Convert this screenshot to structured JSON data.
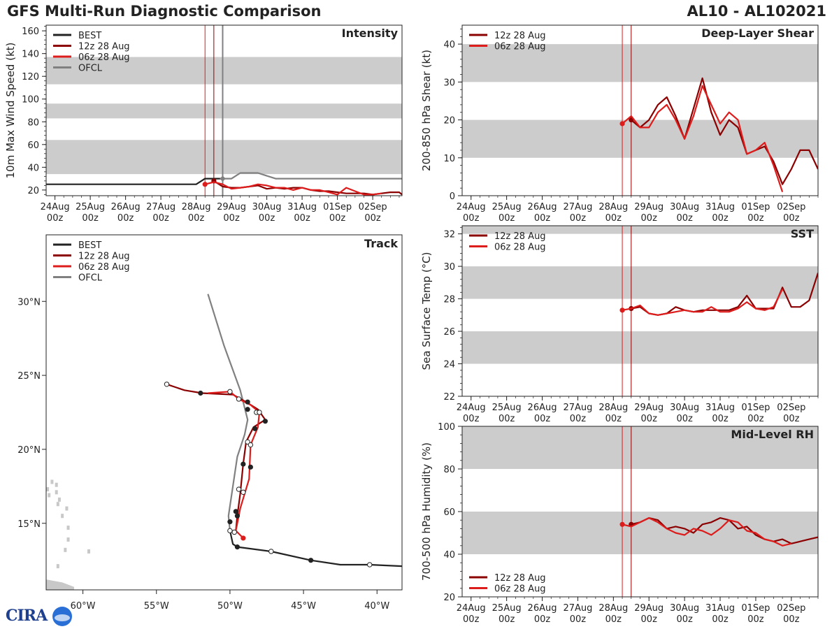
{
  "header": {
    "title": "GFS Multi-Run Diagnostic Comparison",
    "storm": "AL10 - AL102021"
  },
  "logo": {
    "text": "CIRA"
  },
  "colors": {
    "best": "#222222",
    "run12z": "#8b0000",
    "run06z": "#dd1c1c",
    "ofcl": "#808080",
    "shade": "#cccccc",
    "land": "#c8c8c8"
  },
  "time_axis": {
    "ticks": [
      {
        "day": 0,
        "top": "24Aug",
        "bottom": "00z"
      },
      {
        "day": 1,
        "top": "25Aug",
        "bottom": "00z"
      },
      {
        "day": 2,
        "top": "26Aug",
        "bottom": "00z"
      },
      {
        "day": 3,
        "top": "27Aug",
        "bottom": "00z"
      },
      {
        "day": 4,
        "top": "28Aug",
        "bottom": "00z"
      },
      {
        "day": 5,
        "top": "29Aug",
        "bottom": "00z"
      },
      {
        "day": 6,
        "top": "30Aug",
        "bottom": "00z"
      },
      {
        "day": 7,
        "top": "31Aug",
        "bottom": "00z"
      },
      {
        "day": 8,
        "top": "01Sep",
        "bottom": "00z"
      },
      {
        "day": 9,
        "top": "02Sep",
        "bottom": "00z"
      }
    ],
    "init_06z": 4.25,
    "init_12z": 4.5
  },
  "chart_data": [
    {
      "id": "intensity",
      "type": "line",
      "title": "Intensity",
      "ylabel": "10m Max Wind Speed (kt)",
      "ylim": [
        15,
        165
      ],
      "xlim": [
        -0.25,
        9.83
      ],
      "yticks": [
        20,
        40,
        60,
        80,
        100,
        120,
        140,
        160
      ],
      "shade_bands": [
        [
          34,
          64
        ],
        [
          83,
          96
        ],
        [
          113,
          137
        ]
      ],
      "init_lines": [
        4.25,
        4.5
      ],
      "ofcl_init": 4.75,
      "legend": [
        "BEST",
        "12z 28 Aug",
        "06z 28 Aug",
        "OFCL"
      ],
      "series": [
        {
          "name": "BEST",
          "color": "#222222",
          "x": [
            -0.25,
            4.0,
            4.25,
            4.5,
            4.75
          ],
          "y": [
            25,
            25,
            30,
            30,
            30
          ]
        },
        {
          "name": "OFCL",
          "color": "#808080",
          "x": [
            4.75,
            5.0,
            5.25,
            5.75,
            6.25,
            7.0,
            8.0,
            9.0,
            9.83
          ],
          "y": [
            30,
            30,
            35,
            35,
            30,
            30,
            30,
            30,
            30
          ]
        },
        {
          "name": "12z 28 Aug",
          "color": "#8b0000",
          "x": [
            4.5,
            4.75,
            5.0,
            5.25,
            5.5,
            5.75,
            6.0,
            6.25,
            6.5,
            6.75,
            7.0,
            7.25,
            7.5,
            7.75,
            8.0,
            8.25,
            8.5,
            8.75,
            9.0,
            9.25,
            9.5,
            9.75,
            9.83
          ],
          "y": [
            28,
            23,
            22,
            22,
            23,
            24,
            21,
            22,
            21,
            22,
            22,
            20,
            19,
            19,
            18,
            17,
            17,
            17,
            16,
            17,
            18,
            18,
            16
          ]
        },
        {
          "name": "06z 28 Aug",
          "color": "#dd1c1c",
          "x": [
            4.25,
            4.5,
            4.75,
            5.0,
            5.25,
            5.5,
            5.75,
            6.0,
            6.25,
            6.5,
            6.75,
            7.0,
            7.25,
            7.5,
            7.75,
            8.0,
            8.25,
            8.5,
            8.75,
            9.0,
            9.25
          ],
          "y": [
            25,
            27,
            25,
            21,
            22,
            23,
            25,
            24,
            22,
            22,
            20,
            22,
            20,
            20,
            18,
            16,
            22,
            19,
            16,
            16,
            17
          ]
        }
      ]
    },
    {
      "id": "shear",
      "type": "line",
      "title": "Deep-Layer Shear",
      "ylabel": "200-850 hPa Shear (kt)",
      "ylim": [
        0,
        45
      ],
      "xlim": [
        -0.25,
        9.75
      ],
      "yticks": [
        0,
        10,
        20,
        30,
        40
      ],
      "shade_bands": [
        [
          10,
          20
        ],
        [
          30,
          40
        ]
      ],
      "init_lines": [
        4.25,
        4.5
      ],
      "legend": [
        "12z 28 Aug",
        "06z 28 Aug"
      ],
      "series": [
        {
          "name": "12z 28 Aug",
          "color": "#8b0000",
          "x": [
            4.5,
            4.75,
            5.0,
            5.25,
            5.5,
            5.75,
            6.0,
            6.25,
            6.5,
            6.75,
            7.0,
            7.25,
            7.5,
            7.75,
            8.0,
            8.25,
            8.5,
            8.75,
            9.0,
            9.25,
            9.5,
            9.75
          ],
          "y": [
            20,
            18,
            20,
            24,
            26,
            21,
            15,
            23,
            31,
            22,
            16,
            20,
            18,
            11,
            12,
            13,
            9,
            3,
            7,
            12,
            12,
            7
          ]
        },
        {
          "name": "06z 28 Aug",
          "color": "#dd1c1c",
          "x": [
            4.25,
            4.5,
            4.75,
            5.0,
            5.25,
            5.5,
            5.75,
            6.0,
            6.25,
            6.5,
            6.75,
            7.0,
            7.25,
            7.5,
            7.75,
            8.0,
            8.25,
            8.5,
            8.75
          ],
          "y": [
            19,
            21,
            18,
            18,
            22,
            24,
            20,
            15,
            21,
            29,
            24,
            19,
            22,
            20,
            11,
            12,
            14,
            8,
            1
          ]
        }
      ]
    },
    {
      "id": "sst",
      "type": "line",
      "title": "SST",
      "ylabel": "Sea Surface Temp (°C)",
      "ylim": [
        22,
        32.5
      ],
      "xlim": [
        -0.25,
        9.75
      ],
      "yticks": [
        22,
        24,
        26,
        28,
        30,
        32
      ],
      "shade_bands": [
        [
          24,
          26
        ],
        [
          28,
          30
        ],
        [
          32,
          33
        ]
      ],
      "init_lines": [
        4.25,
        4.5
      ],
      "legend": [
        "12z 28 Aug",
        "06z 28 Aug"
      ],
      "series": [
        {
          "name": "12z 28 Aug",
          "color": "#8b0000",
          "x": [
            4.5,
            4.75,
            5.0,
            5.25,
            5.5,
            5.75,
            6.0,
            6.25,
            6.5,
            6.75,
            7.0,
            7.25,
            7.5,
            7.75,
            8.0,
            8.25,
            8.5,
            8.75,
            9.0,
            9.25,
            9.5,
            9.75
          ],
          "y": [
            27.4,
            27.5,
            27.1,
            27.0,
            27.1,
            27.5,
            27.3,
            27.2,
            27.3,
            27.3,
            27.3,
            27.3,
            27.5,
            28.2,
            27.4,
            27.4,
            27.4,
            28.7,
            27.5,
            27.5,
            27.9,
            29.6
          ]
        },
        {
          "name": "06z 28 Aug",
          "color": "#dd1c1c",
          "x": [
            4.25,
            4.5,
            4.75,
            5.0,
            5.25,
            5.5,
            5.75,
            6.0,
            6.25,
            6.5,
            6.75,
            7.0,
            7.25,
            7.5,
            7.75,
            8.0,
            8.25,
            8.5,
            8.75
          ],
          "y": [
            27.3,
            27.4,
            27.6,
            27.1,
            27.0,
            27.1,
            27.2,
            27.3,
            27.2,
            27.2,
            27.5,
            27.2,
            27.2,
            27.4,
            27.8,
            27.4,
            27.3,
            27.5,
            28.6
          ]
        }
      ]
    },
    {
      "id": "rh",
      "type": "line",
      "title": "Mid-Level RH",
      "ylabel": "700-500 hPa Humidity (%)",
      "ylim": [
        20,
        100
      ],
      "xlim": [
        -0.25,
        9.75
      ],
      "yticks": [
        20,
        40,
        60,
        80,
        100
      ],
      "shade_bands": [
        [
          40,
          60
        ],
        [
          80,
          100
        ]
      ],
      "init_lines": [
        4.25,
        4.5
      ],
      "legend": [
        "12z 28 Aug",
        "06z 28 Aug"
      ],
      "legend_loc": "lower-left",
      "series": [
        {
          "name": "12z 28 Aug",
          "color": "#8b0000",
          "x": [
            4.5,
            4.75,
            5.0,
            5.25,
            5.5,
            5.75,
            6.0,
            6.25,
            6.5,
            6.75,
            7.0,
            7.25,
            7.5,
            7.75,
            8.0,
            8.25,
            8.5,
            8.75,
            9.0,
            9.25,
            9.5,
            9.75
          ],
          "y": [
            54,
            55,
            57,
            56,
            52,
            53,
            52,
            50,
            54,
            55,
            57,
            56,
            52,
            53,
            49,
            47,
            46,
            47,
            45,
            46,
            47,
            48
          ]
        },
        {
          "name": "06z 28 Aug",
          "color": "#dd1c1c",
          "x": [
            4.25,
            4.5,
            4.75,
            5.0,
            5.25,
            5.5,
            5.75,
            6.0,
            6.25,
            6.5,
            6.75,
            7.0,
            7.25,
            7.5,
            7.75,
            8.0,
            8.25,
            8.5,
            8.75,
            9.0
          ],
          "y": [
            54,
            53,
            55,
            57,
            55,
            52,
            50,
            49,
            52,
            51,
            49,
            52,
            56,
            55,
            51,
            50,
            47,
            46,
            44,
            45
          ]
        }
      ]
    },
    {
      "id": "track",
      "type": "scatter",
      "title": "Track",
      "xlim": [
        -62.5,
        -38.3
      ],
      "ylim": [
        10.5,
        34.5
      ],
      "xticks": [
        {
          "v": -60,
          "label": "60°W"
        },
        {
          "v": -55,
          "label": "55°W"
        },
        {
          "v": -50,
          "label": "50°W"
        },
        {
          "v": -45,
          "label": "45°W"
        },
        {
          "v": -40,
          "label": "40°W"
        }
      ],
      "yticks": [
        {
          "v": 15,
          "label": "15°N"
        },
        {
          "v": 20,
          "label": "20°N"
        },
        {
          "v": 25,
          "label": "25°N"
        },
        {
          "v": 30,
          "label": "30°N"
        }
      ],
      "legend": [
        "BEST",
        "12z 28 Aug",
        "06z 28 Aug",
        "OFCL"
      ],
      "series": [
        {
          "name": "BEST",
          "color": "#222222",
          "lon": [
            -38.3,
            -40.5,
            -42.5,
            -44.5,
            -47.2,
            -49.5,
            -49.8,
            -50.0
          ],
          "lat": [
            12.1,
            12.2,
            12.2,
            12.5,
            13.1,
            13.4,
            13.6,
            14.5
          ],
          "closed": [
            [
              -44.5,
              12.5
            ],
            [
              -49.5,
              13.4
            ]
          ],
          "open": [
            [
              -40.5,
              12.2
            ],
            [
              -47.2,
              13.1
            ],
            [
              -50.0,
              14.5
            ]
          ]
        },
        {
          "name": "OFCL",
          "color": "#808080",
          "lon": [
            -50.0,
            -50.1,
            -49.8,
            -49.5,
            -49.0,
            -48.8,
            -49.3,
            -50.4,
            -51.5
          ],
          "lat": [
            14.5,
            15.5,
            17.5,
            19.5,
            21.0,
            22.0,
            24.0,
            27.0,
            30.5
          ],
          "closed": [
            [
              -50.0,
              15.1
            ]
          ],
          "open": []
        },
        {
          "name": "12z 28 Aug",
          "color": "#8b0000",
          "lon": [
            -49.6,
            -49.5,
            -49.3,
            -49.1,
            -48.9,
            -48.4,
            -47.6,
            -48.1,
            -48.9,
            -49.8,
            -51.9,
            -53.1,
            -54.3
          ],
          "lat": [
            14.5,
            15.5,
            17.0,
            19.0,
            20.5,
            21.5,
            22.0,
            22.7,
            23.2,
            23.7,
            23.8,
            24.0,
            24.4
          ],
          "closed": [
            [
              -49.6,
              15.8
            ],
            [
              -49.5,
              15.5
            ],
            [
              -49.1,
              19.0
            ],
            [
              -48.6,
              18.8
            ],
            [
              -48.3,
              21.4
            ],
            [
              -47.6,
              21.9
            ],
            [
              -48.8,
              22.7
            ],
            [
              -48.8,
              23.2
            ],
            [
              -52.0,
              23.8
            ]
          ],
          "open": [
            [
              -54.3,
              24.4
            ]
          ]
        },
        {
          "name": "06z 28 Aug",
          "color": "#dd1c1c",
          "lon": [
            -49.1,
            -49.6,
            -49.3,
            -49.0,
            -48.7,
            -48.6,
            -48.1,
            -48.0,
            -48.6,
            -49.4,
            -50.0,
            -51.5
          ],
          "lat": [
            14.0,
            14.5,
            16.0,
            17.0,
            18.0,
            20.3,
            21.5,
            22.5,
            23.0,
            23.4,
            23.9,
            23.8
          ],
          "closed": [
            [
              -49.1,
              14.0
            ]
          ],
          "open": [
            [
              -49.7,
              14.4
            ],
            [
              -49.4,
              17.3
            ],
            [
              -49.1,
              17.1
            ],
            [
              -48.8,
              20.5
            ],
            [
              -48.6,
              20.3
            ],
            [
              -48.2,
              22.5
            ],
            [
              -48.0,
              22.5
            ],
            [
              -49.4,
              23.4
            ],
            [
              -50.0,
              23.9
            ]
          ]
        }
      ]
    }
  ]
}
